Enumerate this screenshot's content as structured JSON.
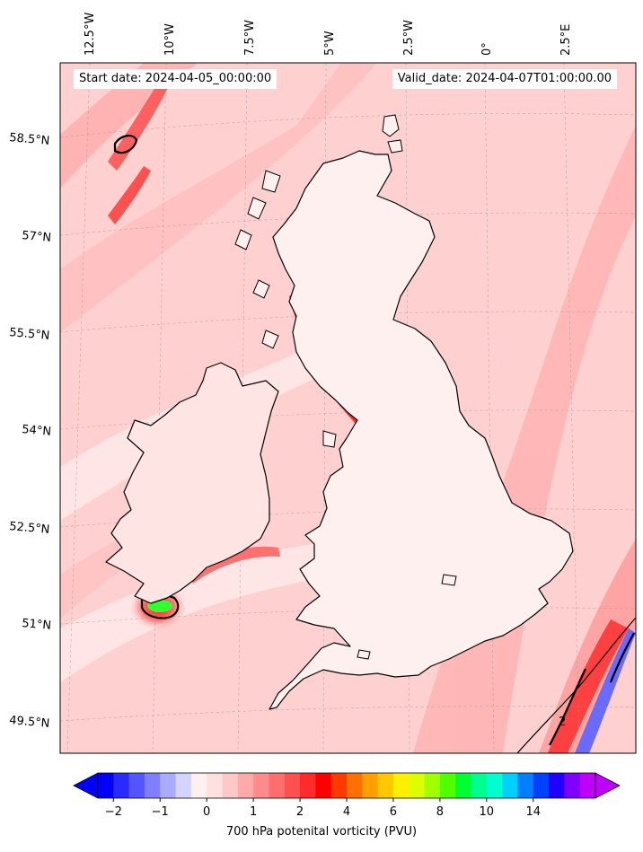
{
  "header": {
    "start_date": "Start date: 2024-04-05_00:00:00",
    "valid_date": "Valid_date: 2024-04-07T01:00:00.00"
  },
  "map": {
    "lon_labels": [
      "12.5°W",
      "10°W",
      "7.5°W",
      "5°W",
      "2.5°W",
      "0°",
      "2.5°E"
    ],
    "lat_labels": [
      "58.5°N",
      "57°N",
      "55.5°N",
      "54°N",
      "52.5°N",
      "51°N",
      "49.5°N"
    ],
    "contour_label": "2",
    "colors": {
      "coastline": "#000000",
      "land_background": "#ffe0e0",
      "sea_background": "#ffd0d0"
    }
  },
  "colorbar": {
    "label": "700 hPa potenital vorticity (PVU)",
    "tick_labels": [
      "−2",
      "−1",
      "0",
      "1",
      "2",
      "4",
      "6",
      "8",
      "10",
      "14"
    ],
    "colors": [
      "#0000ff",
      "#2a2aff",
      "#5555ff",
      "#7f7fff",
      "#aaaaff",
      "#d4d4ff",
      "#fff0f0",
      "#ffe0e0",
      "#ffc8c8",
      "#ffaaaa",
      "#ff8c8c",
      "#ff6e6e",
      "#ff5050",
      "#ff2a2a",
      "#ff0000",
      "#ff3a00",
      "#ff7000",
      "#ffa000",
      "#ffc800",
      "#fff000",
      "#dcff00",
      "#a0ff00",
      "#50ff00",
      "#00ff30",
      "#00ff90",
      "#00ffd0",
      "#00d0ff",
      "#0080ff",
      "#0040ff",
      "#2000ff",
      "#8000ff",
      "#c000ff"
    ]
  }
}
